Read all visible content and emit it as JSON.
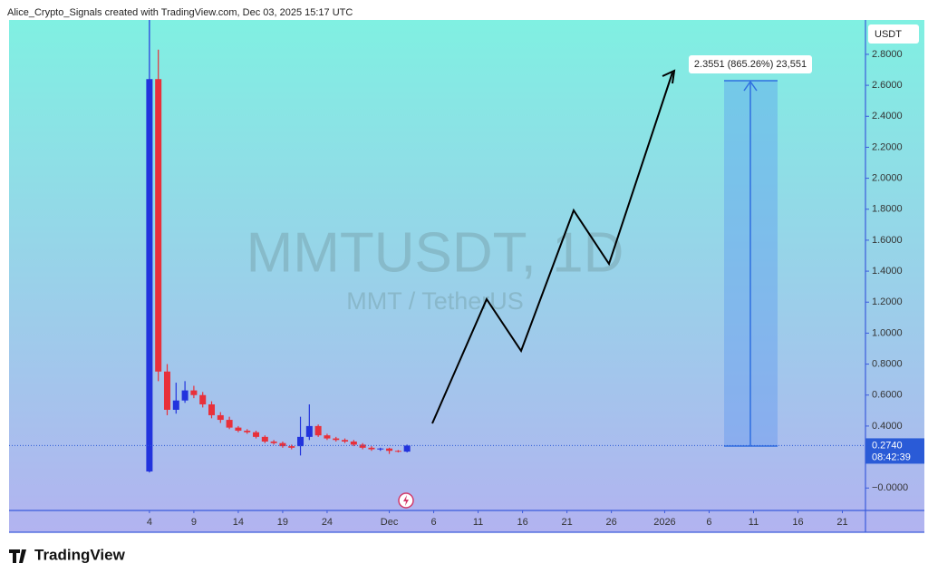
{
  "header": {
    "caption": "Alice_Crypto_Signals created with TradingView.com, Dec 03, 2025 15:17 UTC"
  },
  "footer": {
    "logo": "TradingView"
  },
  "chart_data": {
    "type": "candlestick",
    "title": "MMTUSDT, 1D",
    "subtitle": "MMT / TetherUS",
    "y_axis_label": "USDT",
    "x": [
      0,
      1,
      2,
      3,
      4,
      5,
      6,
      7,
      8,
      9,
      10,
      11,
      12,
      13,
      14,
      15,
      16,
      17,
      18,
      19,
      20,
      21,
      22,
      23,
      24,
      25,
      26,
      27,
      28,
      29
    ],
    "open": [
      0.107,
      2.64,
      0.752,
      0.505,
      0.565,
      0.63,
      0.6,
      0.54,
      0.47,
      0.44,
      0.39,
      0.37,
      0.36,
      0.33,
      0.3,
      0.29,
      0.27,
      0.27,
      0.33,
      0.4,
      0.34,
      0.32,
      0.31,
      0.3,
      0.28,
      0.26,
      0.25,
      0.255,
      0.24,
      0.235
    ],
    "high": [
      3.05,
      2.83,
      0.8,
      0.68,
      0.69,
      0.66,
      0.62,
      0.56,
      0.49,
      0.46,
      0.4,
      0.38,
      0.37,
      0.34,
      0.31,
      0.3,
      0.28,
      0.46,
      0.54,
      0.41,
      0.35,
      0.33,
      0.32,
      0.31,
      0.29,
      0.27,
      0.26,
      0.26,
      0.245,
      0.28
    ],
    "low": [
      0.1,
      0.69,
      0.47,
      0.48,
      0.55,
      0.58,
      0.52,
      0.45,
      0.42,
      0.38,
      0.36,
      0.35,
      0.32,
      0.29,
      0.28,
      0.26,
      0.25,
      0.21,
      0.31,
      0.33,
      0.31,
      0.3,
      0.29,
      0.27,
      0.25,
      0.24,
      0.24,
      0.22,
      0.23,
      0.23
    ],
    "close": [
      2.64,
      0.752,
      0.505,
      0.565,
      0.63,
      0.6,
      0.54,
      0.47,
      0.44,
      0.39,
      0.37,
      0.36,
      0.33,
      0.3,
      0.29,
      0.27,
      0.26,
      0.33,
      0.4,
      0.34,
      0.32,
      0.31,
      0.3,
      0.28,
      0.26,
      0.25,
      0.255,
      0.24,
      0.235,
      0.274
    ],
    "up_color": "#2233dd",
    "down_color": "#e8303a",
    "xlim": [
      -15.8,
      80.6
    ],
    "xticks": [
      {
        "value": 0,
        "label": "4"
      },
      {
        "value": 5,
        "label": "9"
      },
      {
        "value": 10,
        "label": "14"
      },
      {
        "value": 15,
        "label": "19"
      },
      {
        "value": 20,
        "label": "24"
      },
      {
        "value": 27,
        "label": "Dec"
      },
      {
        "value": 32,
        "label": "6"
      },
      {
        "value": 37,
        "label": "11"
      },
      {
        "value": 42,
        "label": "16"
      },
      {
        "value": 47,
        "label": "21"
      },
      {
        "value": 52,
        "label": "26"
      },
      {
        "value": 58,
        "label": "2026"
      },
      {
        "value": 63,
        "label": "6"
      },
      {
        "value": 68,
        "label": "11"
      },
      {
        "value": 73,
        "label": "16"
      },
      {
        "value": 78,
        "label": "21"
      }
    ],
    "ylim": [
      -0.145,
      3.022
    ],
    "yticks": [
      {
        "value": 2.8,
        "label": "2.8000"
      },
      {
        "value": 2.6,
        "label": "2.6000"
      },
      {
        "value": 2.4,
        "label": "2.4000"
      },
      {
        "value": 2.2,
        "label": "2.2000"
      },
      {
        "value": 2.0,
        "label": "2.0000"
      },
      {
        "value": 1.8,
        "label": "1.8000"
      },
      {
        "value": 1.6,
        "label": "1.6000"
      },
      {
        "value": 1.4,
        "label": "1.4000"
      },
      {
        "value": 1.2,
        "label": "1.2000"
      },
      {
        "value": 1.0,
        "label": "1.0000"
      },
      {
        "value": 0.8,
        "label": "0.8000"
      },
      {
        "value": 0.6,
        "label": "0.6000"
      },
      {
        "value": 0.4,
        "label": "0.4000"
      },
      {
        "value": 0,
        "label": "−0.0000"
      }
    ],
    "last_price": {
      "value": 0.274,
      "label": "0.2740"
    },
    "countdown": "08:42:39",
    "annotation": "2.3551 (865.26%) 23,551"
  }
}
